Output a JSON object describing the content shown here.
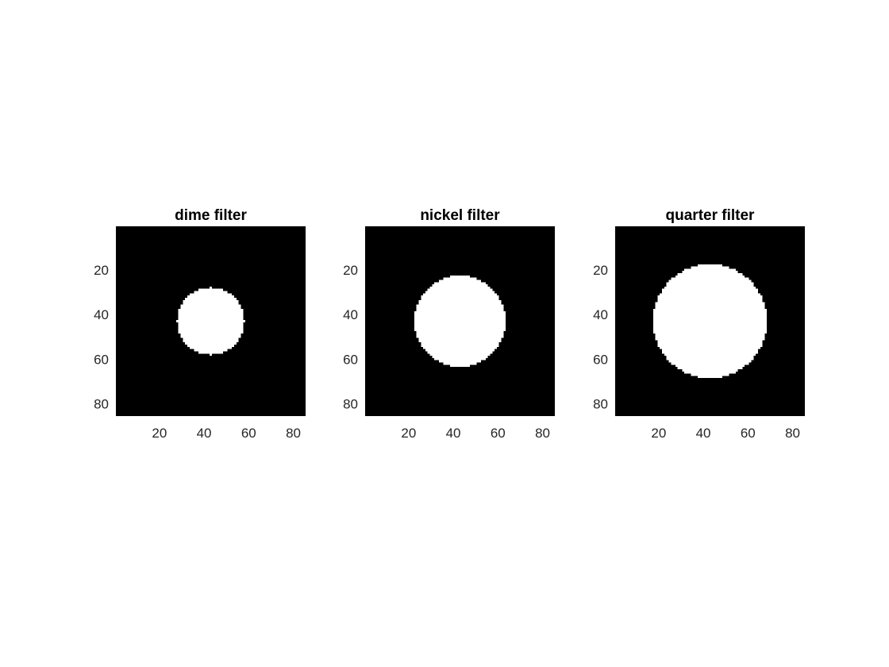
{
  "chart_data": [
    {
      "type": "heatmap",
      "title": "dime filter",
      "xlim": [
        0.5,
        85.5
      ],
      "ylim": [
        0.5,
        85.5
      ],
      "y_reversed": true,
      "xticks": [
        20,
        40,
        60,
        80
      ],
      "yticks": [
        20,
        40,
        60,
        80
      ],
      "colormap": "gray",
      "background_value": 0,
      "mask": {
        "shape": "disk",
        "value": 1,
        "center": [
          43,
          43
        ],
        "radius": 15
      }
    },
    {
      "type": "heatmap",
      "title": "nickel filter",
      "xlim": [
        0.5,
        85.5
      ],
      "ylim": [
        0.5,
        85.5
      ],
      "y_reversed": true,
      "xticks": [
        20,
        40,
        60,
        80
      ],
      "yticks": [
        20,
        40,
        60,
        80
      ],
      "colormap": "gray",
      "background_value": 0,
      "mask": {
        "shape": "disk",
        "value": 1,
        "center": [
          43,
          43
        ],
        "radius": 20.5
      }
    },
    {
      "type": "heatmap",
      "title": "quarter filter",
      "xlim": [
        0.5,
        85.5
      ],
      "ylim": [
        0.5,
        85.5
      ],
      "y_reversed": true,
      "xticks": [
        20,
        40,
        60,
        80
      ],
      "yticks": [
        20,
        40,
        60,
        80
      ],
      "colormap": "gray",
      "background_value": 0,
      "mask": {
        "shape": "disk",
        "value": 1,
        "center": [
          43,
          43
        ],
        "radius": 25.5
      }
    }
  ],
  "colors": {
    "background": "#000000",
    "foreground": "#ffffff",
    "tick_text": "#262626",
    "title_text": "#000000"
  }
}
